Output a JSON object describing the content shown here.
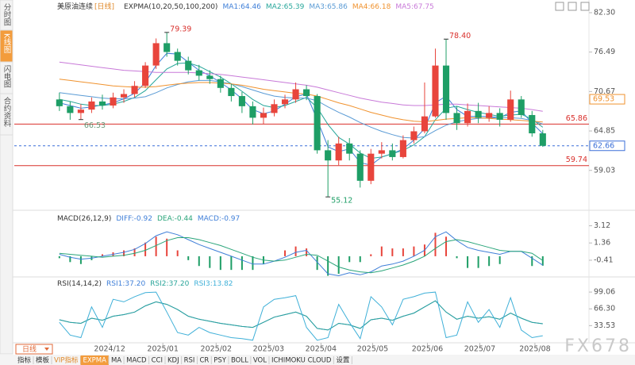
{
  "sidebar": {
    "tabs": [
      "分时图",
      "K线图",
      "闪电图",
      "合约资料"
    ],
    "active": 1
  },
  "chart_data": [
    {
      "type": "candlestick",
      "title": "美原油连续",
      "period_label": "[日线]",
      "indicator": "EXPMA(10,20,50,100,200)",
      "separator": ":",
      "up_color": "#e8453c",
      "down_color": "#1e9e66",
      "xlim": [
        -4.2,
        49.3
      ],
      "xticks": [
        {
          "value": 4.68,
          "label": "2024/12"
        },
        {
          "value": 9.63,
          "label": "2025/01"
        },
        {
          "value": 14.59,
          "label": "2025/02"
        },
        {
          "value": 19.47,
          "label": "2025/03"
        },
        {
          "value": 24.35,
          "label": "2025/04"
        },
        {
          "value": 29.16,
          "label": "2025/05"
        },
        {
          "value": 34.26,
          "label": "2025/06"
        },
        {
          "value": 39.14,
          "label": "2025/07"
        },
        {
          "value": 44.27,
          "label": "2025/08"
        }
      ],
      "ylim": [
        53.5,
        83.0
      ],
      "yticks": [
        {
          "value": 82.3,
          "label": "82.30"
        },
        76.49,
        70.67,
        64.85,
        59.03
      ],
      "candles": [
        [
          69.5,
          70.5,
          67.8,
          68.5
        ],
        [
          68.5,
          69.2,
          66.5,
          67.5
        ],
        [
          67.5,
          68.8,
          66.53,
          68.0
        ],
        [
          68.0,
          69.8,
          67.5,
          69.2
        ],
        [
          69.2,
          70.2,
          68.0,
          68.6
        ],
        [
          68.6,
          70.5,
          68.2,
          69.8
        ],
        [
          69.8,
          71.0,
          69.0,
          70.3
        ],
        [
          70.3,
          72.2,
          69.8,
          71.5
        ],
        [
          71.5,
          75.0,
          71.2,
          74.5
        ],
        [
          74.5,
          78.5,
          74.0,
          77.8
        ],
        [
          77.8,
          79.39,
          75.8,
          76.5
        ],
        [
          76.5,
          77.0,
          74.5,
          75.2
        ],
        [
          75.2,
          75.8,
          73.2,
          73.8
        ],
        [
          73.8,
          74.6,
          72.3,
          73.0
        ],
        [
          73.0,
          73.8,
          71.8,
          72.5
        ],
        [
          72.5,
          73.0,
          70.5,
          71.2
        ],
        [
          71.2,
          71.8,
          69.2,
          70.0
        ],
        [
          70.0,
          70.6,
          67.5,
          68.5
        ],
        [
          68.5,
          69.2,
          65.8,
          66.8
        ],
        [
          66.8,
          68.3,
          65.9,
          67.5
        ],
        [
          67.5,
          69.5,
          67.0,
          68.8
        ],
        [
          68.8,
          70.2,
          68.2,
          69.5
        ],
        [
          69.5,
          72.0,
          69.0,
          71.0
        ],
        [
          71.0,
          71.6,
          69.4,
          70.0
        ],
        [
          70.0,
          70.3,
          61.5,
          62.0
        ],
        [
          62.0,
          63.5,
          55.12,
          60.5
        ],
        [
          60.5,
          64.0,
          59.8,
          63.0
        ],
        [
          63.0,
          63.8,
          60.5,
          61.5
        ],
        [
          61.5,
          62.0,
          56.5,
          57.5
        ],
        [
          57.5,
          62.2,
          57.0,
          61.5
        ],
        [
          61.5,
          63.2,
          60.8,
          62.0
        ],
        [
          62.0,
          63.0,
          60.5,
          61.0
        ],
        [
          61.0,
          64.2,
          60.8,
          63.5
        ],
        [
          63.5,
          65.5,
          63.0,
          64.8
        ],
        [
          64.8,
          72.0,
          64.5,
          67.0
        ],
        [
          67.0,
          77.0,
          66.8,
          74.5
        ],
        [
          74.5,
          78.4,
          66.5,
          67.5
        ],
        [
          67.5,
          68.5,
          65.0,
          66.0
        ],
        [
          66.0,
          68.9,
          65.5,
          67.8
        ],
        [
          67.8,
          69.0,
          66.0,
          66.8
        ],
        [
          66.8,
          68.5,
          66.2,
          67.5
        ],
        [
          67.5,
          68.2,
          65.5,
          66.5
        ],
        [
          66.5,
          70.8,
          66.2,
          69.5
        ],
        [
          69.5,
          70.0,
          66.8,
          67.2
        ],
        [
          67.2,
          67.8,
          64.0,
          64.5
        ],
        [
          64.5,
          65.0,
          62.5,
          62.66
        ]
      ],
      "series": [
        {
          "name": "MA1",
          "legend_value": "64.46",
          "color": "#3f7fd8",
          "values": [
            69.0,
            68.6,
            68.2,
            68.4,
            68.7,
            69.0,
            69.6,
            70.4,
            72.0,
            74.5,
            76.3,
            76.2,
            75.0,
            73.8,
            73.0,
            72.0,
            70.9,
            69.6,
            68.0,
            67.4,
            67.8,
            68.8,
            69.9,
            70.3,
            66.5,
            62.5,
            61.8,
            62.2,
            60.2,
            59.8,
            61.0,
            61.5,
            62.2,
            63.5,
            65.2,
            69.0,
            70.0,
            68.0,
            67.0,
            67.0,
            67.0,
            66.8,
            67.6,
            67.8,
            66.0,
            64.46
          ]
        },
        {
          "name": "MA2",
          "legend_value": "65.39",
          "color": "#26a69a",
          "values": [
            69.5,
            69.2,
            68.8,
            68.6,
            68.6,
            68.8,
            69.2,
            69.8,
            70.8,
            72.4,
            74.0,
            74.8,
            74.9,
            74.4,
            73.6,
            72.8,
            71.8,
            70.7,
            69.5,
            68.6,
            68.3,
            68.6,
            69.2,
            69.8,
            68.3,
            65.8,
            63.9,
            62.9,
            61.6,
            60.8,
            61.0,
            61.5,
            62.0,
            62.8,
            64.0,
            66.5,
            68.2,
            68.5,
            68.0,
            67.6,
            67.3,
            67.0,
            67.2,
            67.3,
            66.6,
            65.39
          ]
        },
        {
          "name": "MA3",
          "legend_value": "65.86",
          "color": "#5a9bd5",
          "values": [
            70.5,
            70.3,
            70.1,
            69.9,
            69.7,
            69.6,
            69.6,
            69.7,
            69.9,
            70.5,
            71.2,
            71.7,
            72.1,
            72.3,
            72.3,
            72.1,
            71.8,
            71.4,
            70.9,
            70.4,
            70.0,
            69.8,
            69.7,
            69.7,
            69.3,
            68.4,
            67.6,
            66.9,
            66.1,
            65.4,
            64.8,
            64.3,
            63.9,
            63.8,
            64.0,
            64.9,
            65.7,
            66.2,
            66.5,
            66.7,
            66.8,
            66.8,
            66.8,
            66.7,
            66.4,
            65.86
          ]
        },
        {
          "name": "MA4",
          "legend_value": "66.18",
          "color": "#f0922e",
          "values": [
            72.5,
            72.3,
            72.1,
            71.9,
            71.7,
            71.5,
            71.4,
            71.3,
            71.3,
            71.4,
            71.6,
            71.8,
            71.9,
            72.0,
            72.0,
            71.9,
            71.8,
            71.6,
            71.3,
            71.0,
            70.8,
            70.6,
            70.4,
            70.3,
            70.0,
            69.5,
            69.0,
            68.6,
            68.1,
            67.6,
            67.2,
            66.8,
            66.5,
            66.3,
            66.2,
            66.4,
            66.6,
            66.7,
            66.8,
            66.8,
            66.7,
            66.6,
            66.5,
            66.4,
            66.3,
            66.18
          ]
        },
        {
          "name": "MA5",
          "legend_value": "67.75",
          "color": "#c879d8",
          "values": [
            75.0,
            74.8,
            74.6,
            74.4,
            74.2,
            74.0,
            73.8,
            73.7,
            73.6,
            73.5,
            73.5,
            73.5,
            73.5,
            73.4,
            73.3,
            73.2,
            73.0,
            72.8,
            72.6,
            72.4,
            72.2,
            72.0,
            71.8,
            71.6,
            71.3,
            70.9,
            70.5,
            70.1,
            69.7,
            69.4,
            69.1,
            68.9,
            68.7,
            68.6,
            68.6,
            68.7,
            68.8,
            68.8,
            68.7,
            68.6,
            68.5,
            68.4,
            68.3,
            68.2,
            68.0,
            67.75
          ]
        }
      ],
      "price_lines": [
        {
          "value": 69.53,
          "label": "69.53",
          "color": "#f0922e",
          "style": "none",
          "boxed": true
        },
        {
          "value": 65.86,
          "label": "65.86",
          "color": "#d9302c",
          "style": "solid",
          "boxed": false
        },
        {
          "value": 62.66,
          "label": "62.66",
          "color": "#3a6fd8",
          "style": "dashed",
          "boxed": true
        },
        {
          "value": 59.74,
          "label": "59.74",
          "color": "#d9302c",
          "style": "solid",
          "boxed": false
        }
      ],
      "annotations": [
        {
          "x": 10,
          "value": 79.39,
          "label": "79.39",
          "color": "#d9302c"
        },
        {
          "x": 25,
          "value": 55.12,
          "label": "55.12",
          "color": "#1e9e66"
        },
        {
          "x": 36,
          "value": 78.4,
          "label": "78.40",
          "color": "#d9302c"
        },
        {
          "x": 2,
          "value": 66.53,
          "label": "66.53",
          "color": "#6a9a7a"
        }
      ]
    },
    {
      "type": "macd",
      "title": "MACD(26,12,9)",
      "separator": ":",
      "up_color": "#e8453c",
      "down_color": "#1e9e66",
      "ylim": [
        -2.2,
        4.3
      ],
      "yticks": [
        3.12,
        1.36,
        -0.41
      ],
      "series": [
        {
          "name": "DIFF",
          "legend_value": "-0.92",
          "color": "#3f7fd8",
          "kind": "line",
          "values": [
            0.2,
            -0.1,
            -0.3,
            -0.2,
            0.0,
            0.2,
            0.4,
            0.7,
            1.3,
            2.1,
            2.5,
            2.2,
            1.7,
            1.2,
            0.8,
            0.4,
            0.0,
            -0.4,
            -0.8,
            -0.8,
            -0.5,
            -0.1,
            0.4,
            0.6,
            -0.6,
            -1.8,
            -2.0,
            -1.7,
            -1.9,
            -1.6,
            -1.0,
            -0.8,
            -0.5,
            0.0,
            0.6,
            2.0,
            2.5,
            1.6,
            0.9,
            0.6,
            0.4,
            0.2,
            0.5,
            0.5,
            -0.2,
            -0.92
          ]
        },
        {
          "name": "DEA",
          "legend_value": "-0.44",
          "color": "#2aa57a",
          "kind": "line",
          "values": [
            0.3,
            0.2,
            0.1,
            0.0,
            -0.1,
            0.0,
            0.1,
            0.3,
            0.6,
            1.1,
            1.6,
            1.9,
            1.9,
            1.7,
            1.4,
            1.1,
            0.7,
            0.3,
            -0.1,
            -0.4,
            -0.5,
            -0.4,
            -0.1,
            0.2,
            0.1,
            -0.5,
            -1.1,
            -1.4,
            -1.6,
            -1.7,
            -1.5,
            -1.2,
            -0.9,
            -0.5,
            0.0,
            0.8,
            1.5,
            1.7,
            1.5,
            1.2,
            0.9,
            0.6,
            0.5,
            0.5,
            0.3,
            -0.44
          ]
        },
        {
          "name": "MACD",
          "legend_value": "-0.97",
          "color": "#3f7fd8",
          "kind": "bar",
          "values": [
            -0.2,
            -0.6,
            -0.8,
            -0.4,
            0.2,
            0.4,
            0.6,
            0.8,
            1.4,
            2.0,
            1.8,
            0.6,
            -0.4,
            -1.0,
            -1.2,
            -1.4,
            -1.4,
            -1.4,
            -1.4,
            -0.8,
            0.0,
            0.6,
            1.0,
            0.8,
            -1.4,
            -2.0,
            -1.8,
            -0.6,
            -0.6,
            0.2,
            1.0,
            0.8,
            0.8,
            1.0,
            1.2,
            2.4,
            2.0,
            -0.2,
            -1.2,
            -1.2,
            -1.0,
            -0.8,
            0.0,
            0.0,
            -1.0,
            -0.97
          ]
        }
      ]
    },
    {
      "type": "line",
      "title": "RSI(14,14,2)",
      "separator": ":",
      "ylim": [
        0,
        124
      ],
      "yticks": [
        99.06,
        {
          "value": 66.3,
          "label": "66.30"
        },
        33.53
      ],
      "series": [
        {
          "name": "RSI1",
          "legend_value": "37.20",
          "color": "#3f7fd8",
          "values": [
            45,
            40,
            38,
            48,
            44,
            52,
            55,
            60,
            72,
            80,
            75,
            65,
            52,
            46,
            42,
            38,
            35,
            32,
            30,
            40,
            50,
            55,
            60,
            52,
            28,
            25,
            38,
            35,
            28,
            45,
            48,
            44,
            52,
            58,
            70,
            82,
            60,
            46,
            52,
            48,
            51,
            46,
            58,
            48,
            40,
            37.2
          ]
        },
        {
          "name": "RSI2",
          "legend_value": "37.20",
          "color": "#2aa59a",
          "values": [
            45,
            40,
            38,
            48,
            44,
            52,
            55,
            60,
            72,
            80,
            75,
            65,
            52,
            46,
            42,
            38,
            35,
            32,
            30,
            40,
            50,
            55,
            60,
            52,
            28,
            25,
            38,
            35,
            28,
            45,
            48,
            44,
            52,
            58,
            70,
            82,
            60,
            46,
            52,
            48,
            51,
            46,
            58,
            48,
            40,
            37.2
          ]
        },
        {
          "name": "RSI3",
          "legend_value": "13.82",
          "color": "#3fb0d8",
          "values": [
            40,
            15,
            10,
            70,
            30,
            85,
            80,
            90,
            98,
            99,
            60,
            20,
            15,
            30,
            20,
            15,
            10,
            8,
            5,
            70,
            85,
            88,
            92,
            30,
            5,
            10,
            75,
            40,
            8,
            90,
            70,
            35,
            85,
            90,
            97,
            99,
            10,
            15,
            80,
            40,
            65,
            30,
            88,
            25,
            10,
            13.82
          ]
        }
      ]
    }
  ],
  "period_button": "日线",
  "toolbar": [
    "指标",
    "模板",
    "VIP指标",
    "EXPMA",
    "MA",
    "MACD",
    "CCI",
    "KDJ",
    "RSI",
    "CR",
    "PSY",
    "BOLL",
    "VOL",
    "ICHIMOKU CLOUD",
    "设置"
  ],
  "toolbar_active": 3,
  "watermark": "FX678"
}
